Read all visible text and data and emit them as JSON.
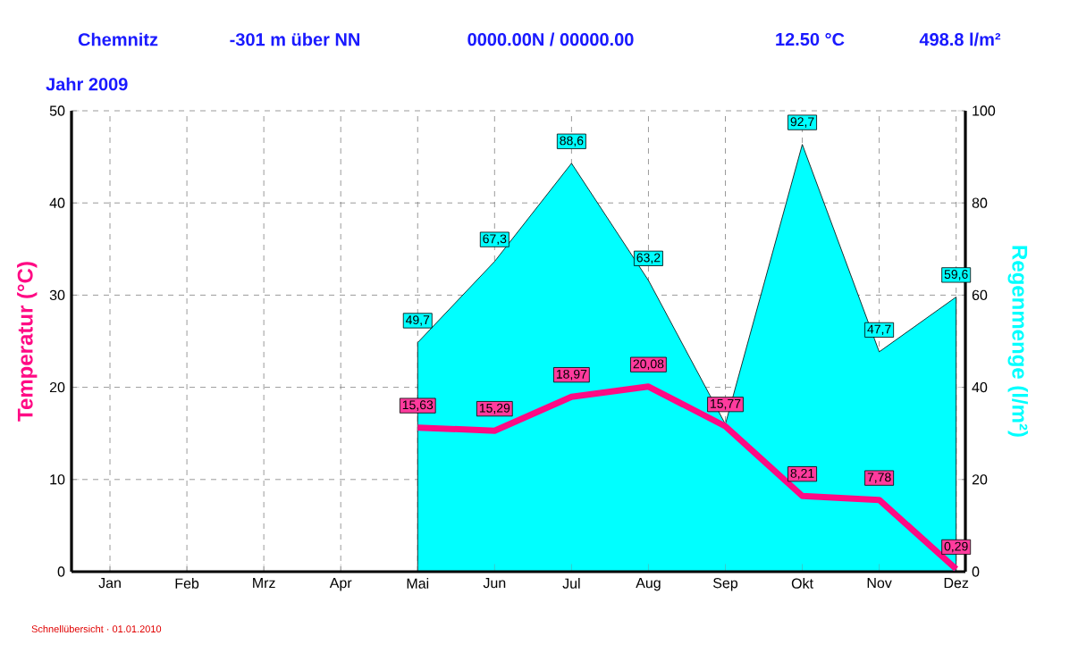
{
  "chart_data": {
    "type": "line",
    "title": "Chemnitz",
    "subtitle": "Jahr 2009",
    "annotations": [
      "-301 m über NN",
      "0000.00N / 00000.00",
      "12.50 °C",
      "498.8 l/m²",
      "Schnellübersicht · 01.01.2010"
    ],
    "categories": [
      "Jan",
      "Feb",
      "Mrz",
      "Apr",
      "Mai",
      "Jun",
      "Jul",
      "Aug",
      "Sep",
      "Okt",
      "Nov",
      "Dez"
    ],
    "ylabel": "Temperatur (°C)",
    "y2label": "Regenmenge (l/m²)",
    "ylim": [
      0,
      50
    ],
    "yticks": [
      0,
      10,
      20,
      30,
      40,
      50
    ],
    "y2lim": [
      0,
      100
    ],
    "y2ticks": [
      0,
      20,
      40,
      60,
      80,
      100
    ],
    "grid": true,
    "series": [
      {
        "type": "area",
        "axis": "y2",
        "color": "#00ffff",
        "values": [
          null,
          null,
          null,
          null,
          49.7,
          67.3,
          88.6,
          63.2,
          32,
          92.7,
          47.7,
          59.6
        ],
        "value_labels": [
          null,
          null,
          null,
          null,
          "49,7",
          "67,3",
          "88,6",
          "63,2",
          null,
          "92,7",
          "47,7",
          "59,6"
        ]
      },
      {
        "axis": "y",
        "color": "#ff0a84",
        "values": [
          null,
          null,
          null,
          null,
          15.63,
          15.29,
          18.97,
          20.08,
          15.77,
          8.21,
          7.78,
          0.29
        ],
        "value_labels": [
          null,
          null,
          null,
          null,
          "15,63",
          "15,29",
          "18,97",
          "20,08",
          "15,77",
          "8,21",
          "7,78",
          "0,29"
        ]
      }
    ]
  }
}
